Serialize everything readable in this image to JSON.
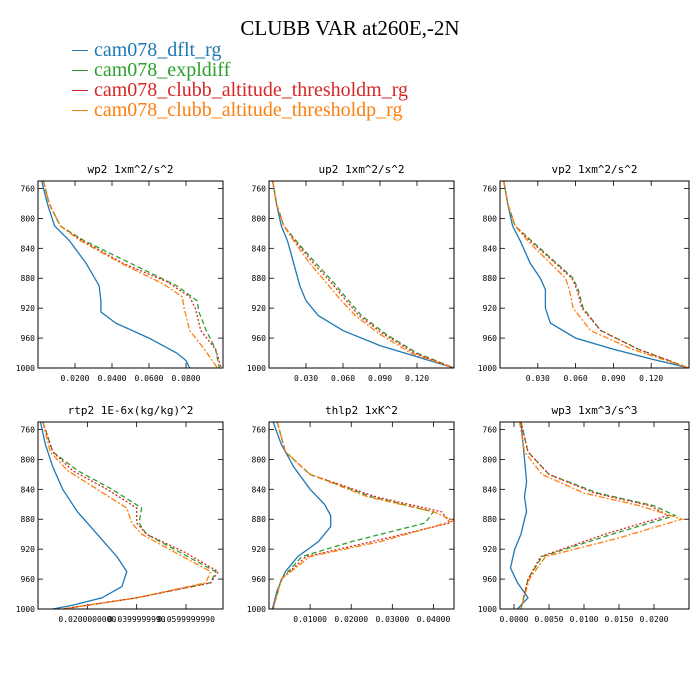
{
  "figure_title": "CLUBB VAR at260E,-2N",
  "legend": [
    {
      "label": "cam078_dflt_rg",
      "color": "#1f77b4"
    },
    {
      "label": "cam078_expldiff",
      "color": "#2ca02c"
    },
    {
      "label": "cam078_clubb_altitude_thresholdm_rg",
      "color": "#d62728"
    },
    {
      "label": "cam078_clubb_altitude_thresholdp_rg",
      "color": "#ff7f0e"
    }
  ],
  "chart_data": [
    {
      "type": "line",
      "title": "wp2  1xm^2/s^2",
      "xlim": [
        0,
        0.1
      ],
      "ylim": [
        750,
        1000
      ],
      "xticks": [
        0.02,
        0.04,
        0.06,
        0.08
      ],
      "xtick_labels": [
        "0.0200",
        "0.0400",
        "0.0600",
        "0.0800"
      ],
      "yticks": [
        760,
        800,
        840,
        880,
        920,
        960,
        1000
      ],
      "ytick_labels": [
        "760",
        "800",
        "840",
        "880",
        "920",
        "960",
        "1000"
      ],
      "series": [
        {
          "name": "cam078_dflt_rg",
          "color": "#1f77b4",
          "dash": "",
          "x": [
            0.002,
            0.005,
            0.009,
            0.017,
            0.026,
            0.033,
            0.034,
            0.034,
            0.042,
            0.06,
            0.075,
            0.08,
            0.082
          ],
          "y": [
            750,
            780,
            810,
            830,
            860,
            890,
            910,
            925,
            940,
            960,
            980,
            990,
            1000
          ]
        },
        {
          "name": "cam078_expldiff",
          "color": "#2ca02c",
          "dash": "5,3",
          "x": [
            0.003,
            0.006,
            0.012,
            0.025,
            0.05,
            0.075,
            0.086,
            0.087,
            0.091,
            0.096,
            0.098
          ],
          "y": [
            750,
            780,
            810,
            830,
            860,
            890,
            910,
            925,
            950,
            975,
            1000
          ]
        },
        {
          "name": "cam078_clubb_altitude_thresholdm_rg",
          "color": "#d62728",
          "dash": "2,2",
          "x": [
            0.003,
            0.006,
            0.012,
            0.024,
            0.046,
            0.07,
            0.082,
            0.085,
            0.088,
            0.096,
            0.099
          ],
          "y": [
            750,
            780,
            810,
            830,
            860,
            885,
            905,
            920,
            950,
            975,
            1000
          ]
        },
        {
          "name": "cam078_clubb_altitude_thresholdp_rg",
          "color": "#ff7f0e",
          "dash": "6,2,2,2",
          "x": [
            0.003,
            0.006,
            0.012,
            0.023,
            0.045,
            0.068,
            0.078,
            0.079,
            0.082,
            0.09,
            0.097
          ],
          "y": [
            750,
            780,
            810,
            830,
            860,
            888,
            905,
            920,
            950,
            975,
            1000
          ]
        }
      ]
    },
    {
      "type": "line",
      "title": "up2  1xm^2/s^2",
      "xlim": [
        0,
        0.15
      ],
      "ylim": [
        750,
        1000
      ],
      "xticks": [
        0.03,
        0.06,
        0.09,
        0.12
      ],
      "xtick_labels": [
        "0.030",
        "0.060",
        "0.090",
        "0.120"
      ],
      "yticks": [
        760,
        800,
        840,
        880,
        920,
        960,
        1000
      ],
      "ytick_labels": [
        "760",
        "800",
        "840",
        "880",
        "920",
        "960",
        "1000"
      ],
      "series": [
        {
          "name": "cam078_dflt_rg",
          "color": "#1f77b4",
          "dash": "",
          "x": [
            0.003,
            0.006,
            0.01,
            0.015,
            0.02,
            0.025,
            0.03,
            0.04,
            0.06,
            0.09,
            0.12,
            0.15
          ],
          "y": [
            750,
            780,
            810,
            830,
            860,
            890,
            910,
            930,
            950,
            970,
            985,
            1000
          ]
        },
        {
          "name": "cam078_expldiff",
          "color": "#2ca02c",
          "dash": "5,3",
          "x": [
            0.003,
            0.006,
            0.012,
            0.022,
            0.038,
            0.052,
            0.062,
            0.075,
            0.095,
            0.12,
            0.15
          ],
          "y": [
            750,
            780,
            810,
            830,
            860,
            885,
            905,
            930,
            955,
            980,
            1000
          ]
        },
        {
          "name": "cam078_clubb_altitude_thresholdm_rg",
          "color": "#d62728",
          "dash": "2,2",
          "x": [
            0.003,
            0.006,
            0.012,
            0.021,
            0.036,
            0.05,
            0.06,
            0.073,
            0.093,
            0.118,
            0.15
          ],
          "y": [
            750,
            780,
            810,
            830,
            860,
            885,
            905,
            930,
            955,
            980,
            1000
          ]
        },
        {
          "name": "cam078_clubb_altitude_thresholdp_rg",
          "color": "#ff7f0e",
          "dash": "6,2,2,2",
          "x": [
            0.003,
            0.006,
            0.012,
            0.02,
            0.033,
            0.046,
            0.056,
            0.07,
            0.09,
            0.115,
            0.15
          ],
          "y": [
            750,
            780,
            810,
            830,
            860,
            885,
            905,
            930,
            955,
            980,
            1000
          ]
        }
      ]
    },
    {
      "type": "line",
      "title": "vp2  1xm^2/s^2",
      "xlim": [
        0,
        0.15
      ],
      "ylim": [
        750,
        1000
      ],
      "xticks": [
        0.03,
        0.06,
        0.09,
        0.12
      ],
      "xtick_labels": [
        "0.030",
        "0.060",
        "0.090",
        "0.120"
      ],
      "yticks": [
        760,
        800,
        840,
        880,
        920,
        960,
        1000
      ],
      "ytick_labels": [
        "760",
        "800",
        "840",
        "880",
        "920",
        "960",
        "1000"
      ],
      "series": [
        {
          "name": "cam078_dflt_rg",
          "color": "#1f77b4",
          "dash": "",
          "x": [
            0.003,
            0.006,
            0.01,
            0.016,
            0.024,
            0.032,
            0.036,
            0.036,
            0.04,
            0.06,
            0.09,
            0.12,
            0.15
          ],
          "y": [
            750,
            780,
            810,
            830,
            860,
            880,
            895,
            920,
            940,
            960,
            975,
            988,
            1000
          ]
        },
        {
          "name": "cam078_expldiff",
          "color": "#2ca02c",
          "dash": "5,3",
          "x": [
            0.003,
            0.006,
            0.012,
            0.025,
            0.045,
            0.058,
            0.062,
            0.066,
            0.08,
            0.11,
            0.15
          ],
          "y": [
            750,
            780,
            810,
            830,
            860,
            880,
            895,
            920,
            950,
            975,
            1000
          ]
        },
        {
          "name": "cam078_clubb_altitude_thresholdm_rg",
          "color": "#d62728",
          "dash": "2,2",
          "x": [
            0.003,
            0.006,
            0.012,
            0.024,
            0.044,
            0.057,
            0.061,
            0.065,
            0.08,
            0.11,
            0.15
          ],
          "y": [
            750,
            780,
            810,
            830,
            860,
            880,
            895,
            920,
            950,
            975,
            1000
          ]
        },
        {
          "name": "cam078_clubb_altitude_thresholdp_rg",
          "color": "#ff7f0e",
          "dash": "6,2,2,2",
          "x": [
            0.003,
            0.006,
            0.012,
            0.022,
            0.04,
            0.052,
            0.055,
            0.058,
            0.072,
            0.105,
            0.15
          ],
          "y": [
            750,
            780,
            810,
            830,
            860,
            880,
            895,
            920,
            950,
            975,
            1000
          ]
        }
      ]
    },
    {
      "type": "line",
      "title": "rtp2  1E-6x(kg/kg)^2",
      "xlim": [
        0,
        0.075
      ],
      "ylim": [
        750,
        1000
      ],
      "xticks": [
        0.02,
        0.04,
        0.06
      ],
      "xtick_labels": [
        "0.0200000000",
        "0.0399999990",
        "0.0599999990"
      ],
      "yticks": [
        760,
        800,
        840,
        880,
        920,
        960,
        1000
      ],
      "ytick_labels": [
        "760",
        "800",
        "840",
        "880",
        "920",
        "960",
        "1000"
      ],
      "series": [
        {
          "name": "cam078_dflt_rg",
          "color": "#1f77b4",
          "dash": "",
          "x": [
            0.001,
            0.003,
            0.006,
            0.01,
            0.016,
            0.024,
            0.032,
            0.036,
            0.034,
            0.026,
            0.014,
            0.006
          ],
          "y": [
            750,
            780,
            810,
            840,
            870,
            900,
            930,
            950,
            970,
            985,
            995,
            1000
          ]
        },
        {
          "name": "cam078_expldiff",
          "color": "#2ca02c",
          "dash": "5,3",
          "x": [
            0.002,
            0.006,
            0.016,
            0.03,
            0.042,
            0.041,
            0.044,
            0.058,
            0.072,
            0.07,
            0.04,
            0.01
          ],
          "y": [
            750,
            790,
            815,
            840,
            865,
            885,
            900,
            925,
            950,
            965,
            985,
            1000
          ]
        },
        {
          "name": "cam078_clubb_altitude_thresholdm_rg",
          "color": "#d62728",
          "dash": "2,2",
          "x": [
            0.002,
            0.006,
            0.014,
            0.028,
            0.04,
            0.04,
            0.044,
            0.06,
            0.073,
            0.07,
            0.04,
            0.01
          ],
          "y": [
            750,
            790,
            815,
            840,
            865,
            885,
            900,
            925,
            950,
            965,
            985,
            1000
          ]
        },
        {
          "name": "cam078_clubb_altitude_thresholdp_rg",
          "color": "#ff7f0e",
          "dash": "6,2,2,2",
          "x": [
            0.002,
            0.005,
            0.012,
            0.024,
            0.036,
            0.038,
            0.042,
            0.056,
            0.07,
            0.068,
            0.04,
            0.01
          ],
          "y": [
            750,
            790,
            815,
            840,
            865,
            885,
            900,
            925,
            950,
            965,
            985,
            1000
          ]
        }
      ]
    },
    {
      "type": "line",
      "title": "thlp2  1xK^2",
      "xlim": [
        0,
        0.045
      ],
      "ylim": [
        750,
        1000
      ],
      "xticks": [
        0.01,
        0.02,
        0.03,
        0.04
      ],
      "xtick_labels": [
        "0.01000",
        "0.02000",
        "0.03000",
        "0.04000"
      ],
      "yticks": [
        760,
        800,
        840,
        880,
        920,
        960,
        1000
      ],
      "ytick_labels": [
        "760",
        "800",
        "840",
        "880",
        "920",
        "960",
        "1000"
      ],
      "series": [
        {
          "name": "cam078_dflt_rg",
          "color": "#1f77b4",
          "dash": "",
          "x": [
            0.001,
            0.003,
            0.006,
            0.01,
            0.0135,
            0.015,
            0.015,
            0.012,
            0.007,
            0.004,
            0.002,
            0.0008
          ],
          "y": [
            750,
            780,
            810,
            840,
            860,
            875,
            890,
            910,
            930,
            950,
            975,
            1000
          ]
        },
        {
          "name": "cam078_expldiff",
          "color": "#2ca02c",
          "dash": "5,3",
          "x": [
            0.002,
            0.004,
            0.01,
            0.025,
            0.04,
            0.038,
            0.02,
            0.008,
            0.003,
            0.001
          ],
          "y": [
            750,
            790,
            820,
            850,
            870,
            885,
            910,
            930,
            960,
            1000
          ]
        },
        {
          "name": "cam078_clubb_altitude_thresholdm_rg",
          "color": "#d62728",
          "dash": "2,2",
          "x": [
            0.002,
            0.004,
            0.01,
            0.026,
            0.042,
            0.044,
            0.025,
            0.009,
            0.003,
            0.001
          ],
          "y": [
            750,
            790,
            820,
            850,
            870,
            885,
            910,
            930,
            960,
            1000
          ]
        },
        {
          "name": "cam078_clubb_altitude_thresholdp_rg",
          "color": "#ff7f0e",
          "dash": "6,2,2,2",
          "x": [
            0.002,
            0.004,
            0.01,
            0.024,
            0.04,
            0.045,
            0.027,
            0.01,
            0.003,
            0.001
          ],
          "y": [
            750,
            790,
            820,
            850,
            870,
            882,
            910,
            930,
            960,
            1000
          ]
        }
      ]
    },
    {
      "type": "line",
      "title": "wp3  1xm^3/s^3",
      "xlim": [
        -0.002,
        0.025
      ],
      "ylim": [
        750,
        1000
      ],
      "xticks": [
        0.0,
        0.005,
        0.01,
        0.015,
        0.02
      ],
      "xtick_labels": [
        "0.0000",
        "0.0050",
        "0.0100",
        "0.0150",
        "0.0200"
      ],
      "yticks": [
        760,
        800,
        840,
        880,
        920,
        960,
        1000
      ],
      "ytick_labels": [
        "760",
        "800",
        "840",
        "880",
        "920",
        "960",
        "1000"
      ],
      "series": [
        {
          "name": "cam078_dflt_rg",
          "color": "#1f77b4",
          "dash": "",
          "x": [
            0.001,
            0.0015,
            0.0018,
            0.0015,
            0.0018,
            0.0015,
            0.001,
            0.0001,
            -0.0005,
            0.0005,
            0.002,
            0.0005
          ],
          "y": [
            750,
            800,
            830,
            850,
            870,
            880,
            900,
            920,
            945,
            965,
            985,
            1000
          ]
        },
        {
          "name": "cam078_expldiff",
          "color": "#2ca02c",
          "dash": "5,3",
          "x": [
            0.001,
            0.002,
            0.005,
            0.012,
            0.02,
            0.023,
            0.014,
            0.004,
            0.002,
            0.001
          ],
          "y": [
            750,
            790,
            820,
            845,
            862,
            875,
            900,
            930,
            960,
            1000
          ]
        },
        {
          "name": "cam078_clubb_altitude_thresholdm_rg",
          "color": "#d62728",
          "dash": "2,2",
          "x": [
            0.001,
            0.002,
            0.005,
            0.0115,
            0.0195,
            0.022,
            0.013,
            0.0038,
            0.002,
            0.001
          ],
          "y": [
            750,
            790,
            820,
            845,
            862,
            875,
            900,
            930,
            960,
            1000
          ]
        },
        {
          "name": "cam078_clubb_altitude_thresholdp_rg",
          "color": "#ff7f0e",
          "dash": "6,2,2,2",
          "x": [
            0.0008,
            0.0015,
            0.004,
            0.01,
            0.018,
            0.024,
            0.015,
            0.0045,
            0.0022,
            0.001
          ],
          "y": [
            750,
            790,
            820,
            845,
            862,
            880,
            905,
            930,
            960,
            1000
          ]
        }
      ]
    }
  ]
}
